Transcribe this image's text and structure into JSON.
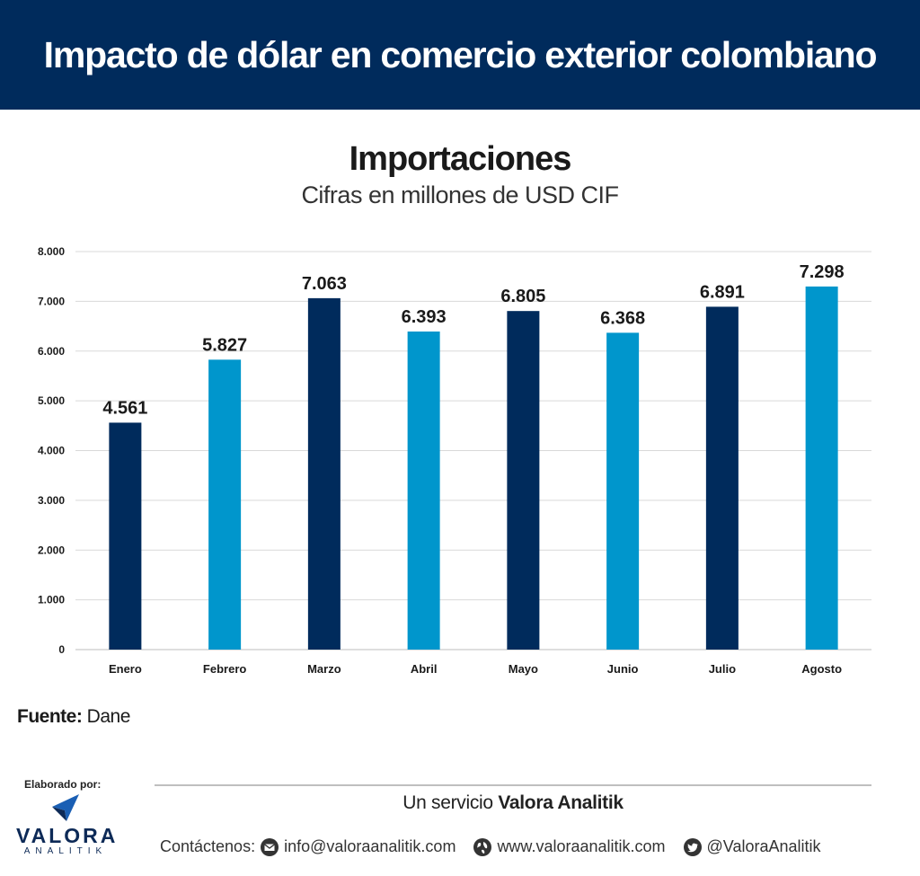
{
  "header": {
    "title": "Impacto de dólar en comercio exterior colombiano"
  },
  "chart_data": {
    "type": "bar",
    "title": "Importaciones",
    "subtitle": "Cifras en millones de USD CIF",
    "categories": [
      "Enero",
      "Febrero",
      "Marzo",
      "Abril",
      "Mayo",
      "Junio",
      "Julio",
      "Agosto"
    ],
    "values": [
      4561,
      5827,
      7063,
      6393,
      6805,
      6368,
      6891,
      7298
    ],
    "value_labels": [
      "4.561",
      "5.827",
      "7.063",
      "6.393",
      "6.805",
      "6.368",
      "6.891",
      "7.298"
    ],
    "ylim": [
      0,
      8000
    ],
    "yticks": [
      0,
      1000,
      2000,
      3000,
      4000,
      5000,
      6000,
      7000,
      8000
    ],
    "ytick_labels": [
      "0",
      "1.000",
      "2.000",
      "3.000",
      "4.000",
      "5.000",
      "6.000",
      "7.000",
      "8.000"
    ],
    "xlabel": "",
    "ylabel": "",
    "grid": true,
    "legend": "none",
    "bar_colors": [
      "#002b5c",
      "#0096cc",
      "#002b5c",
      "#0096cc",
      "#002b5c",
      "#0096cc",
      "#002b5c",
      "#0096cc"
    ]
  },
  "source": {
    "label": "Fuente:",
    "value": "Dane"
  },
  "footer": {
    "elaborado": "Elaborado por:",
    "logo_text": "VALORA",
    "logo_sub": "ANALITIK",
    "service_prefix": "Un servicio",
    "service_brand": "Valora Analitik",
    "contact_label": "Contáctenos:",
    "email": "info@valoraanalitik.com",
    "website": "www.valoraanalitik.com",
    "twitter": "@ValoraAnalitik",
    "icons": [
      "mail-icon",
      "globe-icon",
      "twitter-icon"
    ]
  },
  "colors": {
    "header_bg": "#002b5c",
    "dark_bar": "#002b5c",
    "light_bar": "#0096cc"
  }
}
